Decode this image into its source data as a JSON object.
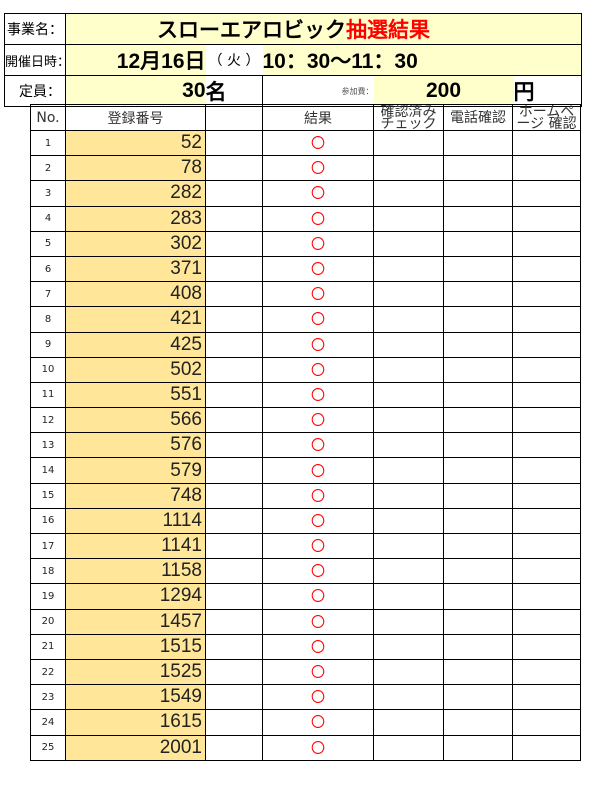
{
  "header": {
    "event_label": "事業名：",
    "event_name": "スローエアロビック",
    "event_suffix": "抽選結果",
    "date_label": "開催日時：",
    "date": "12月16日",
    "weekday": "（ 火 ）",
    "time": "10：30～11：30",
    "capacity_label": "定員：",
    "capacity": "30",
    "capacity_unit": "名",
    "fee_label": "参加費：",
    "fee": "200",
    "fee_unit": "円"
  },
  "table": {
    "columns": [
      "No.",
      "登録番号",
      "",
      "結果",
      "確認済み チェック",
      "電話確認",
      "ホームページ 確認"
    ],
    "rows": [
      {
        "no": "1",
        "id": "52",
        "result": "〇"
      },
      {
        "no": "2",
        "id": "78",
        "result": "〇"
      },
      {
        "no": "3",
        "id": "282",
        "result": "〇"
      },
      {
        "no": "4",
        "id": "283",
        "result": "〇"
      },
      {
        "no": "5",
        "id": "302",
        "result": "〇"
      },
      {
        "no": "6",
        "id": "371",
        "result": "〇"
      },
      {
        "no": "7",
        "id": "408",
        "result": "〇"
      },
      {
        "no": "8",
        "id": "421",
        "result": "〇"
      },
      {
        "no": "9",
        "id": "425",
        "result": "〇"
      },
      {
        "no": "10",
        "id": "502",
        "result": "〇"
      },
      {
        "no": "11",
        "id": "551",
        "result": "〇"
      },
      {
        "no": "12",
        "id": "566",
        "result": "〇"
      },
      {
        "no": "13",
        "id": "576",
        "result": "〇"
      },
      {
        "no": "14",
        "id": "579",
        "result": "〇"
      },
      {
        "no": "15",
        "id": "748",
        "result": "〇"
      },
      {
        "no": "16",
        "id": "1114",
        "result": "〇"
      },
      {
        "no": "17",
        "id": "1141",
        "result": "〇"
      },
      {
        "no": "18",
        "id": "1158",
        "result": "〇"
      },
      {
        "no": "19",
        "id": "1294",
        "result": "〇"
      },
      {
        "no": "20",
        "id": "1457",
        "result": "〇"
      },
      {
        "no": "21",
        "id": "1515",
        "result": "〇"
      },
      {
        "no": "22",
        "id": "1525",
        "result": "〇"
      },
      {
        "no": "23",
        "id": "1549",
        "result": "〇"
      },
      {
        "no": "24",
        "id": "1615",
        "result": "〇"
      },
      {
        "no": "25",
        "id": "2001",
        "result": "〇"
      }
    ]
  }
}
